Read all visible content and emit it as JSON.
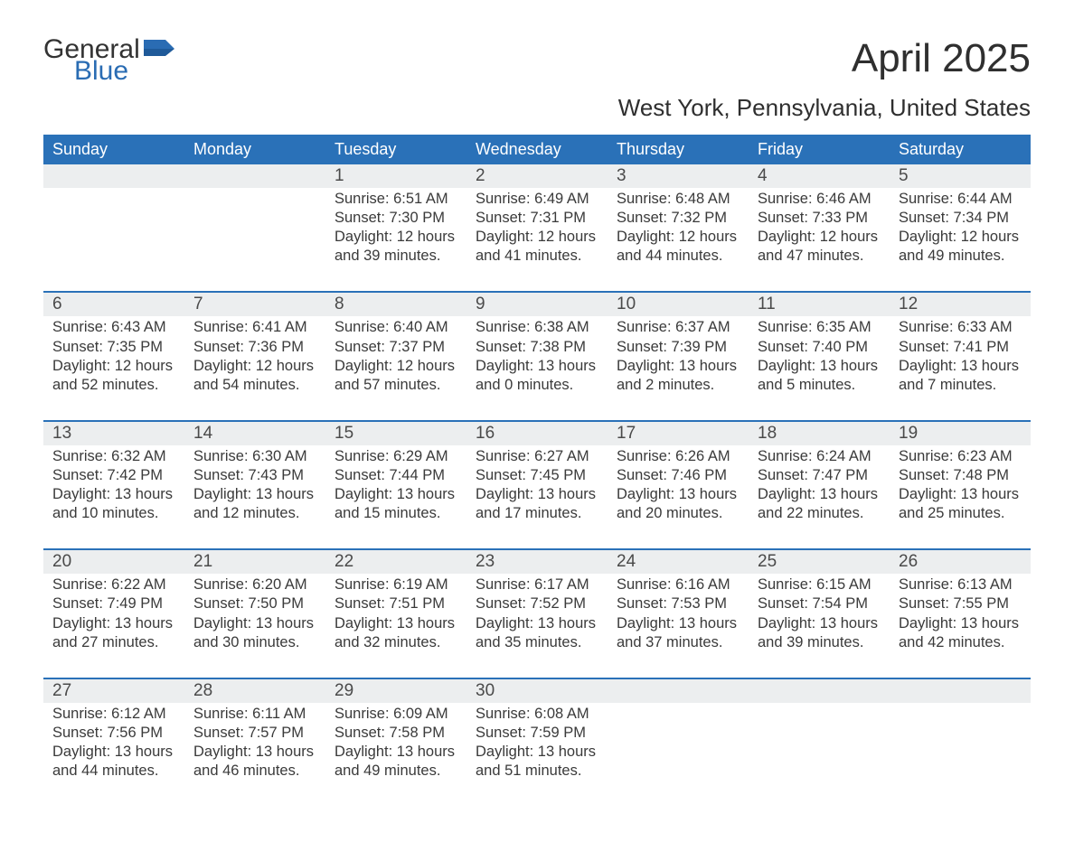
{
  "brand": {
    "word1": "General",
    "word2": "Blue",
    "text_color": "#333333",
    "accent_color": "#2a6cb3"
  },
  "title": {
    "month": "April 2025",
    "location": "West York, Pennsylvania, United States"
  },
  "colors": {
    "header_bg": "#2a71b8",
    "header_text": "#ffffff",
    "daynum_bg": "#eceeef",
    "week_border": "#2a71b8",
    "body_text": "#3a3a3a",
    "page_bg": "#ffffff"
  },
  "dow": [
    "Sunday",
    "Monday",
    "Tuesday",
    "Wednesday",
    "Thursday",
    "Friday",
    "Saturday"
  ],
  "weeks": [
    [
      {
        "n": "",
        "sunrise": "",
        "sunset": "",
        "daylight1": "",
        "daylight2": ""
      },
      {
        "n": "",
        "sunrise": "",
        "sunset": "",
        "daylight1": "",
        "daylight2": ""
      },
      {
        "n": "1",
        "sunrise": "Sunrise: 6:51 AM",
        "sunset": "Sunset: 7:30 PM",
        "daylight1": "Daylight: 12 hours",
        "daylight2": "and 39 minutes."
      },
      {
        "n": "2",
        "sunrise": "Sunrise: 6:49 AM",
        "sunset": "Sunset: 7:31 PM",
        "daylight1": "Daylight: 12 hours",
        "daylight2": "and 41 minutes."
      },
      {
        "n": "3",
        "sunrise": "Sunrise: 6:48 AM",
        "sunset": "Sunset: 7:32 PM",
        "daylight1": "Daylight: 12 hours",
        "daylight2": "and 44 minutes."
      },
      {
        "n": "4",
        "sunrise": "Sunrise: 6:46 AM",
        "sunset": "Sunset: 7:33 PM",
        "daylight1": "Daylight: 12 hours",
        "daylight2": "and 47 minutes."
      },
      {
        "n": "5",
        "sunrise": "Sunrise: 6:44 AM",
        "sunset": "Sunset: 7:34 PM",
        "daylight1": "Daylight: 12 hours",
        "daylight2": "and 49 minutes."
      }
    ],
    [
      {
        "n": "6",
        "sunrise": "Sunrise: 6:43 AM",
        "sunset": "Sunset: 7:35 PM",
        "daylight1": "Daylight: 12 hours",
        "daylight2": "and 52 minutes."
      },
      {
        "n": "7",
        "sunrise": "Sunrise: 6:41 AM",
        "sunset": "Sunset: 7:36 PM",
        "daylight1": "Daylight: 12 hours",
        "daylight2": "and 54 minutes."
      },
      {
        "n": "8",
        "sunrise": "Sunrise: 6:40 AM",
        "sunset": "Sunset: 7:37 PM",
        "daylight1": "Daylight: 12 hours",
        "daylight2": "and 57 minutes."
      },
      {
        "n": "9",
        "sunrise": "Sunrise: 6:38 AM",
        "sunset": "Sunset: 7:38 PM",
        "daylight1": "Daylight: 13 hours",
        "daylight2": "and 0 minutes."
      },
      {
        "n": "10",
        "sunrise": "Sunrise: 6:37 AM",
        "sunset": "Sunset: 7:39 PM",
        "daylight1": "Daylight: 13 hours",
        "daylight2": "and 2 minutes."
      },
      {
        "n": "11",
        "sunrise": "Sunrise: 6:35 AM",
        "sunset": "Sunset: 7:40 PM",
        "daylight1": "Daylight: 13 hours",
        "daylight2": "and 5 minutes."
      },
      {
        "n": "12",
        "sunrise": "Sunrise: 6:33 AM",
        "sunset": "Sunset: 7:41 PM",
        "daylight1": "Daylight: 13 hours",
        "daylight2": "and 7 minutes."
      }
    ],
    [
      {
        "n": "13",
        "sunrise": "Sunrise: 6:32 AM",
        "sunset": "Sunset: 7:42 PM",
        "daylight1": "Daylight: 13 hours",
        "daylight2": "and 10 minutes."
      },
      {
        "n": "14",
        "sunrise": "Sunrise: 6:30 AM",
        "sunset": "Sunset: 7:43 PM",
        "daylight1": "Daylight: 13 hours",
        "daylight2": "and 12 minutes."
      },
      {
        "n": "15",
        "sunrise": "Sunrise: 6:29 AM",
        "sunset": "Sunset: 7:44 PM",
        "daylight1": "Daylight: 13 hours",
        "daylight2": "and 15 minutes."
      },
      {
        "n": "16",
        "sunrise": "Sunrise: 6:27 AM",
        "sunset": "Sunset: 7:45 PM",
        "daylight1": "Daylight: 13 hours",
        "daylight2": "and 17 minutes."
      },
      {
        "n": "17",
        "sunrise": "Sunrise: 6:26 AM",
        "sunset": "Sunset: 7:46 PM",
        "daylight1": "Daylight: 13 hours",
        "daylight2": "and 20 minutes."
      },
      {
        "n": "18",
        "sunrise": "Sunrise: 6:24 AM",
        "sunset": "Sunset: 7:47 PM",
        "daylight1": "Daylight: 13 hours",
        "daylight2": "and 22 minutes."
      },
      {
        "n": "19",
        "sunrise": "Sunrise: 6:23 AM",
        "sunset": "Sunset: 7:48 PM",
        "daylight1": "Daylight: 13 hours",
        "daylight2": "and 25 minutes."
      }
    ],
    [
      {
        "n": "20",
        "sunrise": "Sunrise: 6:22 AM",
        "sunset": "Sunset: 7:49 PM",
        "daylight1": "Daylight: 13 hours",
        "daylight2": "and 27 minutes."
      },
      {
        "n": "21",
        "sunrise": "Sunrise: 6:20 AM",
        "sunset": "Sunset: 7:50 PM",
        "daylight1": "Daylight: 13 hours",
        "daylight2": "and 30 minutes."
      },
      {
        "n": "22",
        "sunrise": "Sunrise: 6:19 AM",
        "sunset": "Sunset: 7:51 PM",
        "daylight1": "Daylight: 13 hours",
        "daylight2": "and 32 minutes."
      },
      {
        "n": "23",
        "sunrise": "Sunrise: 6:17 AM",
        "sunset": "Sunset: 7:52 PM",
        "daylight1": "Daylight: 13 hours",
        "daylight2": "and 35 minutes."
      },
      {
        "n": "24",
        "sunrise": "Sunrise: 6:16 AM",
        "sunset": "Sunset: 7:53 PM",
        "daylight1": "Daylight: 13 hours",
        "daylight2": "and 37 minutes."
      },
      {
        "n": "25",
        "sunrise": "Sunrise: 6:15 AM",
        "sunset": "Sunset: 7:54 PM",
        "daylight1": "Daylight: 13 hours",
        "daylight2": "and 39 minutes."
      },
      {
        "n": "26",
        "sunrise": "Sunrise: 6:13 AM",
        "sunset": "Sunset: 7:55 PM",
        "daylight1": "Daylight: 13 hours",
        "daylight2": "and 42 minutes."
      }
    ],
    [
      {
        "n": "27",
        "sunrise": "Sunrise: 6:12 AM",
        "sunset": "Sunset: 7:56 PM",
        "daylight1": "Daylight: 13 hours",
        "daylight2": "and 44 minutes."
      },
      {
        "n": "28",
        "sunrise": "Sunrise: 6:11 AM",
        "sunset": "Sunset: 7:57 PM",
        "daylight1": "Daylight: 13 hours",
        "daylight2": "and 46 minutes."
      },
      {
        "n": "29",
        "sunrise": "Sunrise: 6:09 AM",
        "sunset": "Sunset: 7:58 PM",
        "daylight1": "Daylight: 13 hours",
        "daylight2": "and 49 minutes."
      },
      {
        "n": "30",
        "sunrise": "Sunrise: 6:08 AM",
        "sunset": "Sunset: 7:59 PM",
        "daylight1": "Daylight: 13 hours",
        "daylight2": "and 51 minutes."
      },
      {
        "n": "",
        "sunrise": "",
        "sunset": "",
        "daylight1": "",
        "daylight2": ""
      },
      {
        "n": "",
        "sunrise": "",
        "sunset": "",
        "daylight1": "",
        "daylight2": ""
      },
      {
        "n": "",
        "sunrise": "",
        "sunset": "",
        "daylight1": "",
        "daylight2": ""
      }
    ]
  ]
}
